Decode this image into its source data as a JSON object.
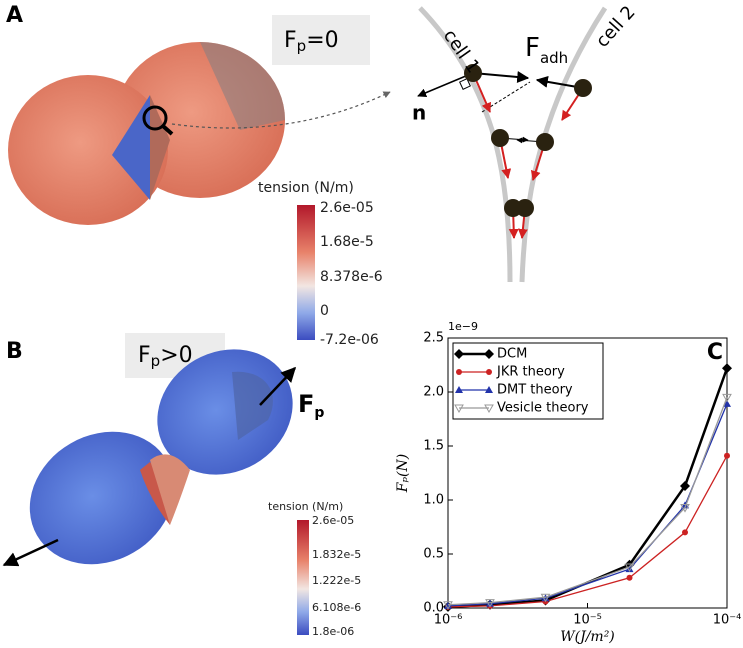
{
  "panel_a": {
    "letter": "A",
    "state": {
      "main": "F",
      "sub": "p",
      "rest": "=0"
    },
    "colorbar": {
      "title": "tension (N/m)",
      "labels": [
        "2.6e-05",
        "1.68e-5",
        "8.378e-6",
        "0",
        "-7.2e-06"
      ]
    },
    "diagram": {
      "cell1": "cell 1",
      "cell2": "cell 2",
      "force": "F",
      "force_sub": "adh",
      "normal": "n"
    }
  },
  "panel_b": {
    "letter": "B",
    "state": {
      "main": "F",
      "sub": "p",
      "rest": ">0"
    },
    "colorbar": {
      "title": "tension (N/m)",
      "labels": [
        "2.6e-05",
        "1.832e-5",
        "1.222e-5",
        "6.108e-6",
        "1.8e-06"
      ]
    },
    "force": "F",
    "force_sub": "p"
  },
  "chart_data": {
    "type": "line",
    "panel": "C",
    "x_label": "W(J/m²)",
    "y_label": "Fₚ(N)",
    "y_offset": "1e−9",
    "x": [
      1e-06,
      2e-06,
      5e-06,
      2e-05,
      5e-05,
      0.0001
    ],
    "xlim": [
      1e-06,
      0.0001
    ],
    "xscale": "log",
    "xticks": [
      {
        "value": 1e-06,
        "label": "10⁻⁶"
      },
      {
        "value": 1e-05,
        "label": "10⁻⁵"
      },
      {
        "value": 0.0001,
        "label": "10⁻⁴"
      }
    ],
    "ylim": [
      0,
      2.5
    ],
    "yticks": [
      {
        "value": 0,
        "label": "0.0"
      },
      0.5,
      {
        "value": 1,
        "label": "1.0"
      },
      1.5,
      {
        "value": 2,
        "label": "2.0"
      },
      2.5
    ],
    "legend": "upper left",
    "series": [
      {
        "name": "DCM",
        "color": "#000000",
        "marker": "diamond",
        "values": [
          0.01,
          0.03,
          0.07,
          0.4,
          1.13,
          2.22
        ]
      },
      {
        "name": "JKR theory",
        "color": "#cc2222",
        "marker": "circle",
        "values": [
          0.01,
          0.02,
          0.06,
          0.28,
          0.7,
          1.41
        ]
      },
      {
        "name": "DMT theory",
        "color": "#2233aa",
        "marker": "triangle",
        "values": [
          0.02,
          0.04,
          0.09,
          0.36,
          0.95,
          1.89
        ]
      },
      {
        "name": "Vesicle theory",
        "color": "#999999",
        "marker": "triangle-down",
        "values": [
          0.03,
          0.05,
          0.1,
          0.38,
          0.93,
          1.95
        ]
      }
    ]
  }
}
